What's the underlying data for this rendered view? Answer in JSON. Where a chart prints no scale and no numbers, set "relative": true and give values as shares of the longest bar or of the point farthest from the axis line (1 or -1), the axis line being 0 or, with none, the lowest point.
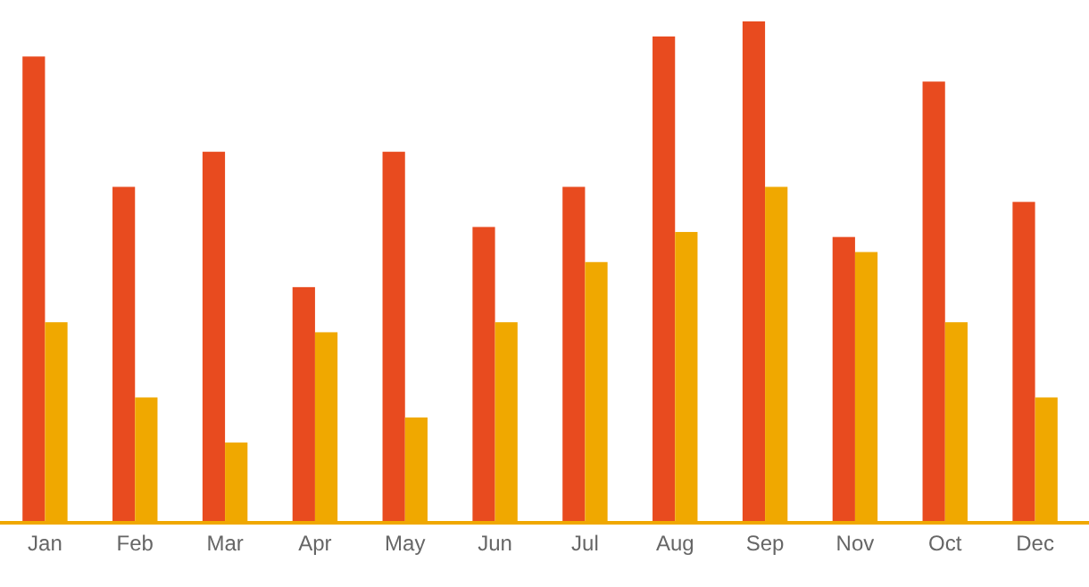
{
  "chart_data": {
    "type": "bar",
    "relative": true,
    "categories": [
      "Jan",
      "Feb",
      "Mar",
      "Apr",
      "May",
      "Jun",
      "Jul",
      "Aug",
      "Sep",
      "Nov",
      "Oct",
      "Dec"
    ],
    "series": [
      {
        "color": "#e84b1f",
        "values": [
          0.93,
          0.67,
          0.74,
          0.47,
          0.74,
          0.59,
          0.67,
          0.97,
          1,
          0.57,
          0.88,
          0.64
        ]
      },
      {
        "color": "#f0a800",
        "values": [
          0.4,
          0.25,
          0.16,
          0.38,
          0.21,
          0.4,
          0.52,
          0.58,
          0.67,
          0.54,
          0.4,
          0.25
        ]
      }
    ]
  }
}
